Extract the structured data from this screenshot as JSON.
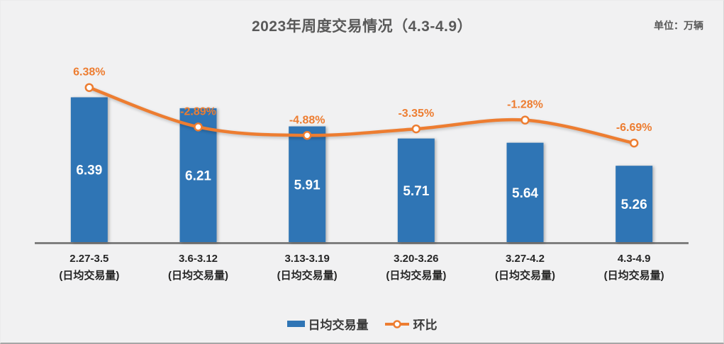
{
  "title": "2023年周度交易情况（4.3-4.9）",
  "unit_label": "单位：万辆",
  "colors": {
    "bar": "#2F75B5",
    "line": "#ED7D31",
    "marker_fill": "#FFFFFF",
    "title_text": "#595959",
    "axis_line": "#7F7F7F",
    "background": "#F1F1F2",
    "bar_value_text": "#FFFFFF",
    "x_label_text": "#262626"
  },
  "chart_data": {
    "type": "combo-bar-line",
    "categories": [
      "2.27-3.5",
      "3.6-3.12",
      "3.13-3.19",
      "3.20-3.26",
      "3.27-4.2",
      "4.3-4.9"
    ],
    "category_sublabel": "(日均交易量)",
    "series": [
      {
        "name": "日均交易量",
        "type": "bar",
        "axis": "y1",
        "values": [
          6.39,
          6.21,
          5.91,
          5.71,
          5.64,
          5.26
        ],
        "value_labels": [
          "6.39",
          "6.21",
          "5.91",
          "5.71",
          "5.64",
          "5.26"
        ]
      },
      {
        "name": "环比",
        "type": "line",
        "axis": "y2",
        "values": [
          6.38,
          -2.89,
          -4.88,
          -3.35,
          -1.28,
          -6.69
        ],
        "value_labels": [
          "6.38%",
          "-2.89%",
          "-4.88%",
          "-3.35%",
          "-1.28%",
          "-6.69%"
        ]
      }
    ],
    "y1_range": [
      4.0,
      7.05
    ],
    "y2_range": [
      -30,
      13.5
    ],
    "grid": false,
    "axes_tick_labels_visible": false,
    "legend_position": "bottom"
  }
}
